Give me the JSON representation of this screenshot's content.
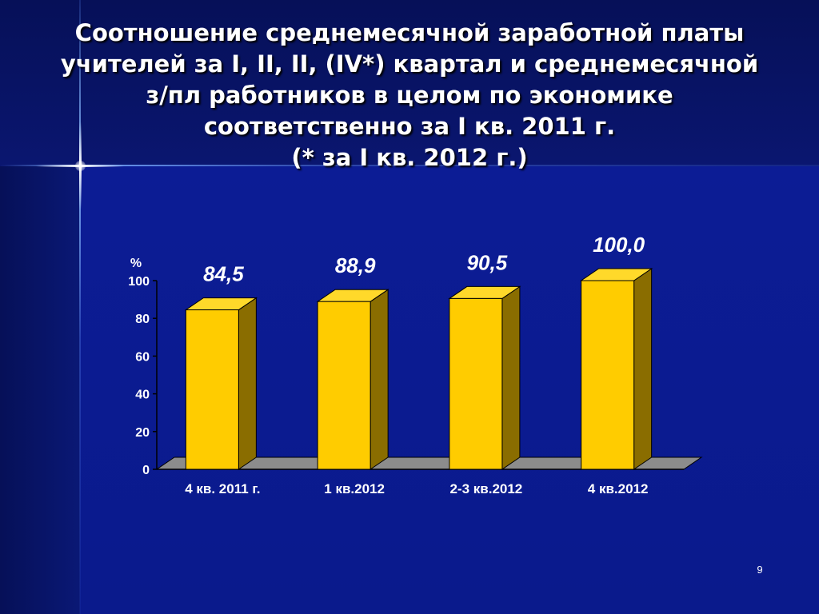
{
  "slide": {
    "title_lines": [
      "Соотношение среднемесячной заработной платы",
      "учителей за I, II, II, (IV*) квартал и среднемесячной",
      "з/пл работников в целом по экономике",
      "соответственно за I кв. 2011 г.",
      "(* за I кв. 2012 г.)"
    ],
    "page_number": "9"
  },
  "colors": {
    "bar_front": "#ffcc00",
    "bar_top": "#ffd92a",
    "bar_side": "#8a6d00",
    "floor": "#8c8c8c",
    "axis_text": "#ffffff"
  },
  "chart_data": {
    "type": "bar",
    "ylabel": "%",
    "categories": [
      "4 кв. 2011 г.",
      "1 кв.2012",
      "2-3 кв.2012",
      "4 кв.2012"
    ],
    "values": [
      84.5,
      88.9,
      90.5,
      100.0
    ],
    "data_labels": [
      "84,5",
      "88,9",
      "90,5",
      "100,0"
    ],
    "yticks": [
      "0",
      "20",
      "40",
      "60",
      "80",
      "100"
    ],
    "ylim": [
      0,
      100
    ],
    "grid": false,
    "legend": "none",
    "style": "3d"
  }
}
